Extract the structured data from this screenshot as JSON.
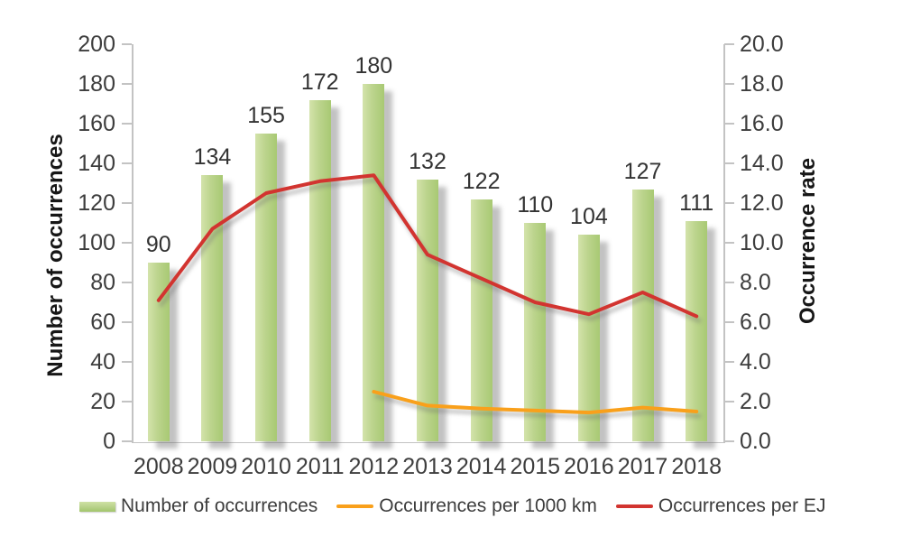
{
  "chart_data": {
    "type": "combo-bar-line",
    "categories": [
      "2008",
      "2009",
      "2010",
      "2011",
      "2012",
      "2013",
      "2014",
      "2015",
      "2016",
      "2017",
      "2018"
    ],
    "series": [
      {
        "name": "Number of occurrences",
        "type": "bar",
        "axis": "left",
        "values": [
          90,
          134,
          155,
          172,
          180,
          132,
          122,
          110,
          104,
          127,
          111
        ],
        "data_labels": [
          "90",
          "134",
          "155",
          "172",
          "180",
          "132",
          "122",
          "110",
          "104",
          "127",
          "111"
        ],
        "color": "#b7d189"
      },
      {
        "name": "Occurrences per 1000 km",
        "type": "line",
        "axis": "right",
        "values": [
          null,
          null,
          null,
          null,
          2.5,
          1.8,
          1.65,
          1.55,
          1.45,
          1.7,
          1.5
        ],
        "color": "#f9a01b"
      },
      {
        "name": "Occurrences per EJ",
        "type": "line",
        "axis": "right",
        "values": [
          7.1,
          10.7,
          12.5,
          13.1,
          13.4,
          9.4,
          8.2,
          7.0,
          6.4,
          7.5,
          6.3
        ],
        "color": "#d23430"
      }
    ],
    "left_axis": {
      "title": "Number of occurrences",
      "min": 0,
      "max": 200,
      "step": 20,
      "ticks": [
        "0",
        "20",
        "40",
        "60",
        "80",
        "100",
        "120",
        "140",
        "160",
        "180",
        "200"
      ]
    },
    "right_axis": {
      "title": "Occurrence rate",
      "min": 0,
      "max": 20,
      "step": 2,
      "ticks": [
        "0.0",
        "2.0",
        "4.0",
        "6.0",
        "8.0",
        "10.0",
        "12.0",
        "14.0",
        "16.0",
        "18.0",
        "20.0"
      ]
    },
    "grid": "off",
    "legend_position": "bottom"
  },
  "colors": {
    "bar_light": "#d3e3ab",
    "bar_mid": "#bcd48d",
    "bar_dark": "#a8c973",
    "line_orange": "#f9a01b",
    "line_red": "#d23430",
    "axis_gray": "#c3c3c3",
    "text": "#3d3d3d"
  }
}
